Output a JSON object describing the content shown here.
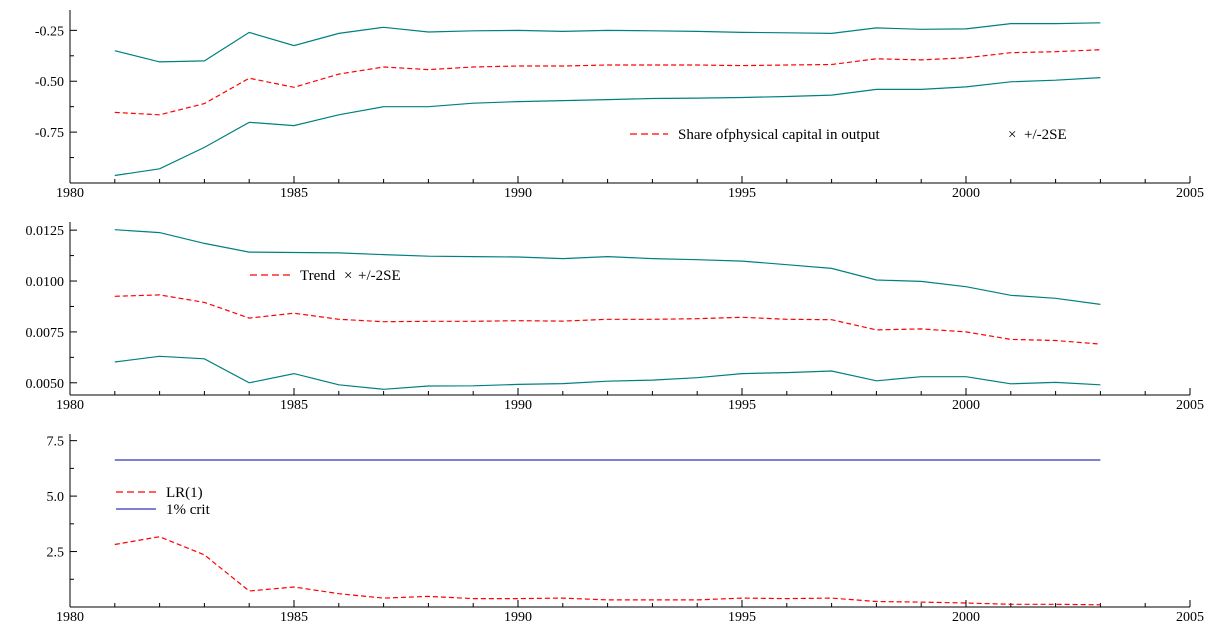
{
  "chart_data": [
    {
      "type": "line",
      "x": [
        1981,
        1982,
        1983,
        1984,
        1985,
        1986,
        1987,
        1988,
        1989,
        1990,
        1991,
        1992,
        1993,
        1994,
        1995,
        1996,
        1997,
        1998,
        1999,
        2000,
        2001,
        2002,
        2003
      ],
      "xlim": [
        1980,
        2005
      ],
      "xticks": [
        1980,
        1985,
        1990,
        1995,
        2000,
        2005
      ],
      "ylim": [
        -1.0,
        -0.15
      ],
      "yticks": [
        -0.75,
        -0.5,
        -0.25
      ],
      "ytick_labels": [
        "-0.75",
        "-0.50",
        "-0.25"
      ],
      "legend": "Share of physical capital in output × +/-2SE",
      "legend_parts": {
        "a": "Share of",
        "b": "physical capital in output",
        "c": "×",
        "d": "+/-2SE"
      },
      "series": [
        {
          "style": "dashed",
          "color": "#ff0000",
          "values": [
            -0.653,
            -0.665,
            -0.61,
            -0.485,
            -0.53,
            -0.465,
            -0.43,
            -0.443,
            -0.43,
            -0.425,
            -0.425,
            -0.42,
            -0.42,
            -0.42,
            -0.423,
            -0.42,
            -0.418,
            -0.39,
            -0.395,
            -0.385,
            -0.36,
            -0.355,
            -0.345
          ]
        },
        {
          "style": "solid",
          "color": "#008080",
          "values": [
            -0.35,
            -0.405,
            -0.4,
            -0.26,
            -0.325,
            -0.265,
            -0.235,
            -0.258,
            -0.252,
            -0.25,
            -0.255,
            -0.25,
            -0.252,
            -0.255,
            -0.26,
            -0.262,
            -0.265,
            -0.238,
            -0.245,
            -0.243,
            -0.217,
            -0.217,
            -0.213
          ]
        },
        {
          "style": "solid",
          "color": "#008080",
          "values": [
            -0.963,
            -0.93,
            -0.825,
            -0.702,
            -0.718,
            -0.665,
            -0.625,
            -0.625,
            -0.608,
            -0.6,
            -0.595,
            -0.59,
            -0.585,
            -0.583,
            -0.58,
            -0.575,
            -0.568,
            -0.54,
            -0.54,
            -0.528,
            -0.503,
            -0.495,
            -0.482
          ]
        }
      ]
    },
    {
      "type": "line",
      "x": [
        1981,
        1982,
        1983,
        1984,
        1985,
        1986,
        1987,
        1988,
        1989,
        1990,
        1991,
        1992,
        1993,
        1994,
        1995,
        1996,
        1997,
        1998,
        1999,
        2000,
        2001,
        2002,
        2003
      ],
      "xlim": [
        1980,
        2005
      ],
      "xticks": [
        1980,
        1985,
        1990,
        1995,
        2000,
        2005
      ],
      "ylim": [
        0.0044,
        0.0129
      ],
      "yticks": [
        0.005,
        0.0075,
        0.01,
        0.0125
      ],
      "ytick_labels": [
        "0.0050",
        "0.0075",
        "0.0100",
        "0.0125"
      ],
      "legend": "Trend × +/-2SE",
      "legend_parts": {
        "a": "Trend",
        "b": "×",
        "c": "+/-2SE"
      },
      "series": [
        {
          "style": "dashed",
          "color": "#ff0000",
          "values": [
            0.00925,
            0.00932,
            0.00895,
            0.00818,
            0.00842,
            0.00812,
            0.008,
            0.00802,
            0.00802,
            0.00805,
            0.00803,
            0.00812,
            0.00812,
            0.00815,
            0.00822,
            0.00812,
            0.0081,
            0.0076,
            0.00765,
            0.0075,
            0.00713,
            0.00708,
            0.0069
          ]
        },
        {
          "style": "solid",
          "color": "#008080",
          "values": [
            0.01252,
            0.01238,
            0.01185,
            0.01142,
            0.0114,
            0.01138,
            0.0113,
            0.01122,
            0.0112,
            0.01118,
            0.0111,
            0.0112,
            0.0111,
            0.01105,
            0.01098,
            0.0108,
            0.01062,
            0.01005,
            0.00998,
            0.00972,
            0.0093,
            0.00915,
            0.00885
          ]
        },
        {
          "style": "solid",
          "color": "#008080",
          "values": [
            0.00602,
            0.0063,
            0.00618,
            0.005,
            0.00545,
            0.0049,
            0.00468,
            0.00484,
            0.00485,
            0.00492,
            0.00496,
            0.00508,
            0.00513,
            0.00525,
            0.00545,
            0.0055,
            0.00558,
            0.0051,
            0.0053,
            0.0053,
            0.00495,
            0.00502,
            0.0049
          ]
        }
      ]
    },
    {
      "type": "line",
      "x": [
        1981,
        1982,
        1983,
        1984,
        1985,
        1986,
        1987,
        1988,
        1989,
        1990,
        1991,
        1992,
        1993,
        1994,
        1995,
        1996,
        1997,
        1998,
        1999,
        2000,
        2001,
        2002,
        2003
      ],
      "xlim": [
        1980,
        2005
      ],
      "xticks": [
        1980,
        1985,
        1990,
        1995,
        2000,
        2005
      ],
      "ylim": [
        0,
        7.8
      ],
      "yticks": [
        2.5,
        5.0,
        7.5
      ],
      "ytick_labels": [
        "2.5",
        "5.0",
        "7.5"
      ],
      "series": [
        {
          "name": "LR(1)",
          "style": "dashed",
          "color": "#ff0000",
          "values": [
            2.82,
            3.17,
            2.35,
            0.72,
            0.9,
            0.6,
            0.4,
            0.48,
            0.38,
            0.38,
            0.4,
            0.32,
            0.32,
            0.32,
            0.4,
            0.38,
            0.4,
            0.25,
            0.22,
            0.18,
            0.12,
            0.12,
            0.1
          ]
        },
        {
          "name": "1% crit",
          "style": "solid",
          "color": "#3333bb",
          "values": [
            6.63,
            6.63,
            6.63,
            6.63,
            6.63,
            6.63,
            6.63,
            6.63,
            6.63,
            6.63,
            6.63,
            6.63,
            6.63,
            6.63,
            6.63,
            6.63,
            6.63,
            6.63,
            6.63,
            6.63,
            6.63,
            6.63,
            6.63
          ]
        }
      ]
    }
  ]
}
